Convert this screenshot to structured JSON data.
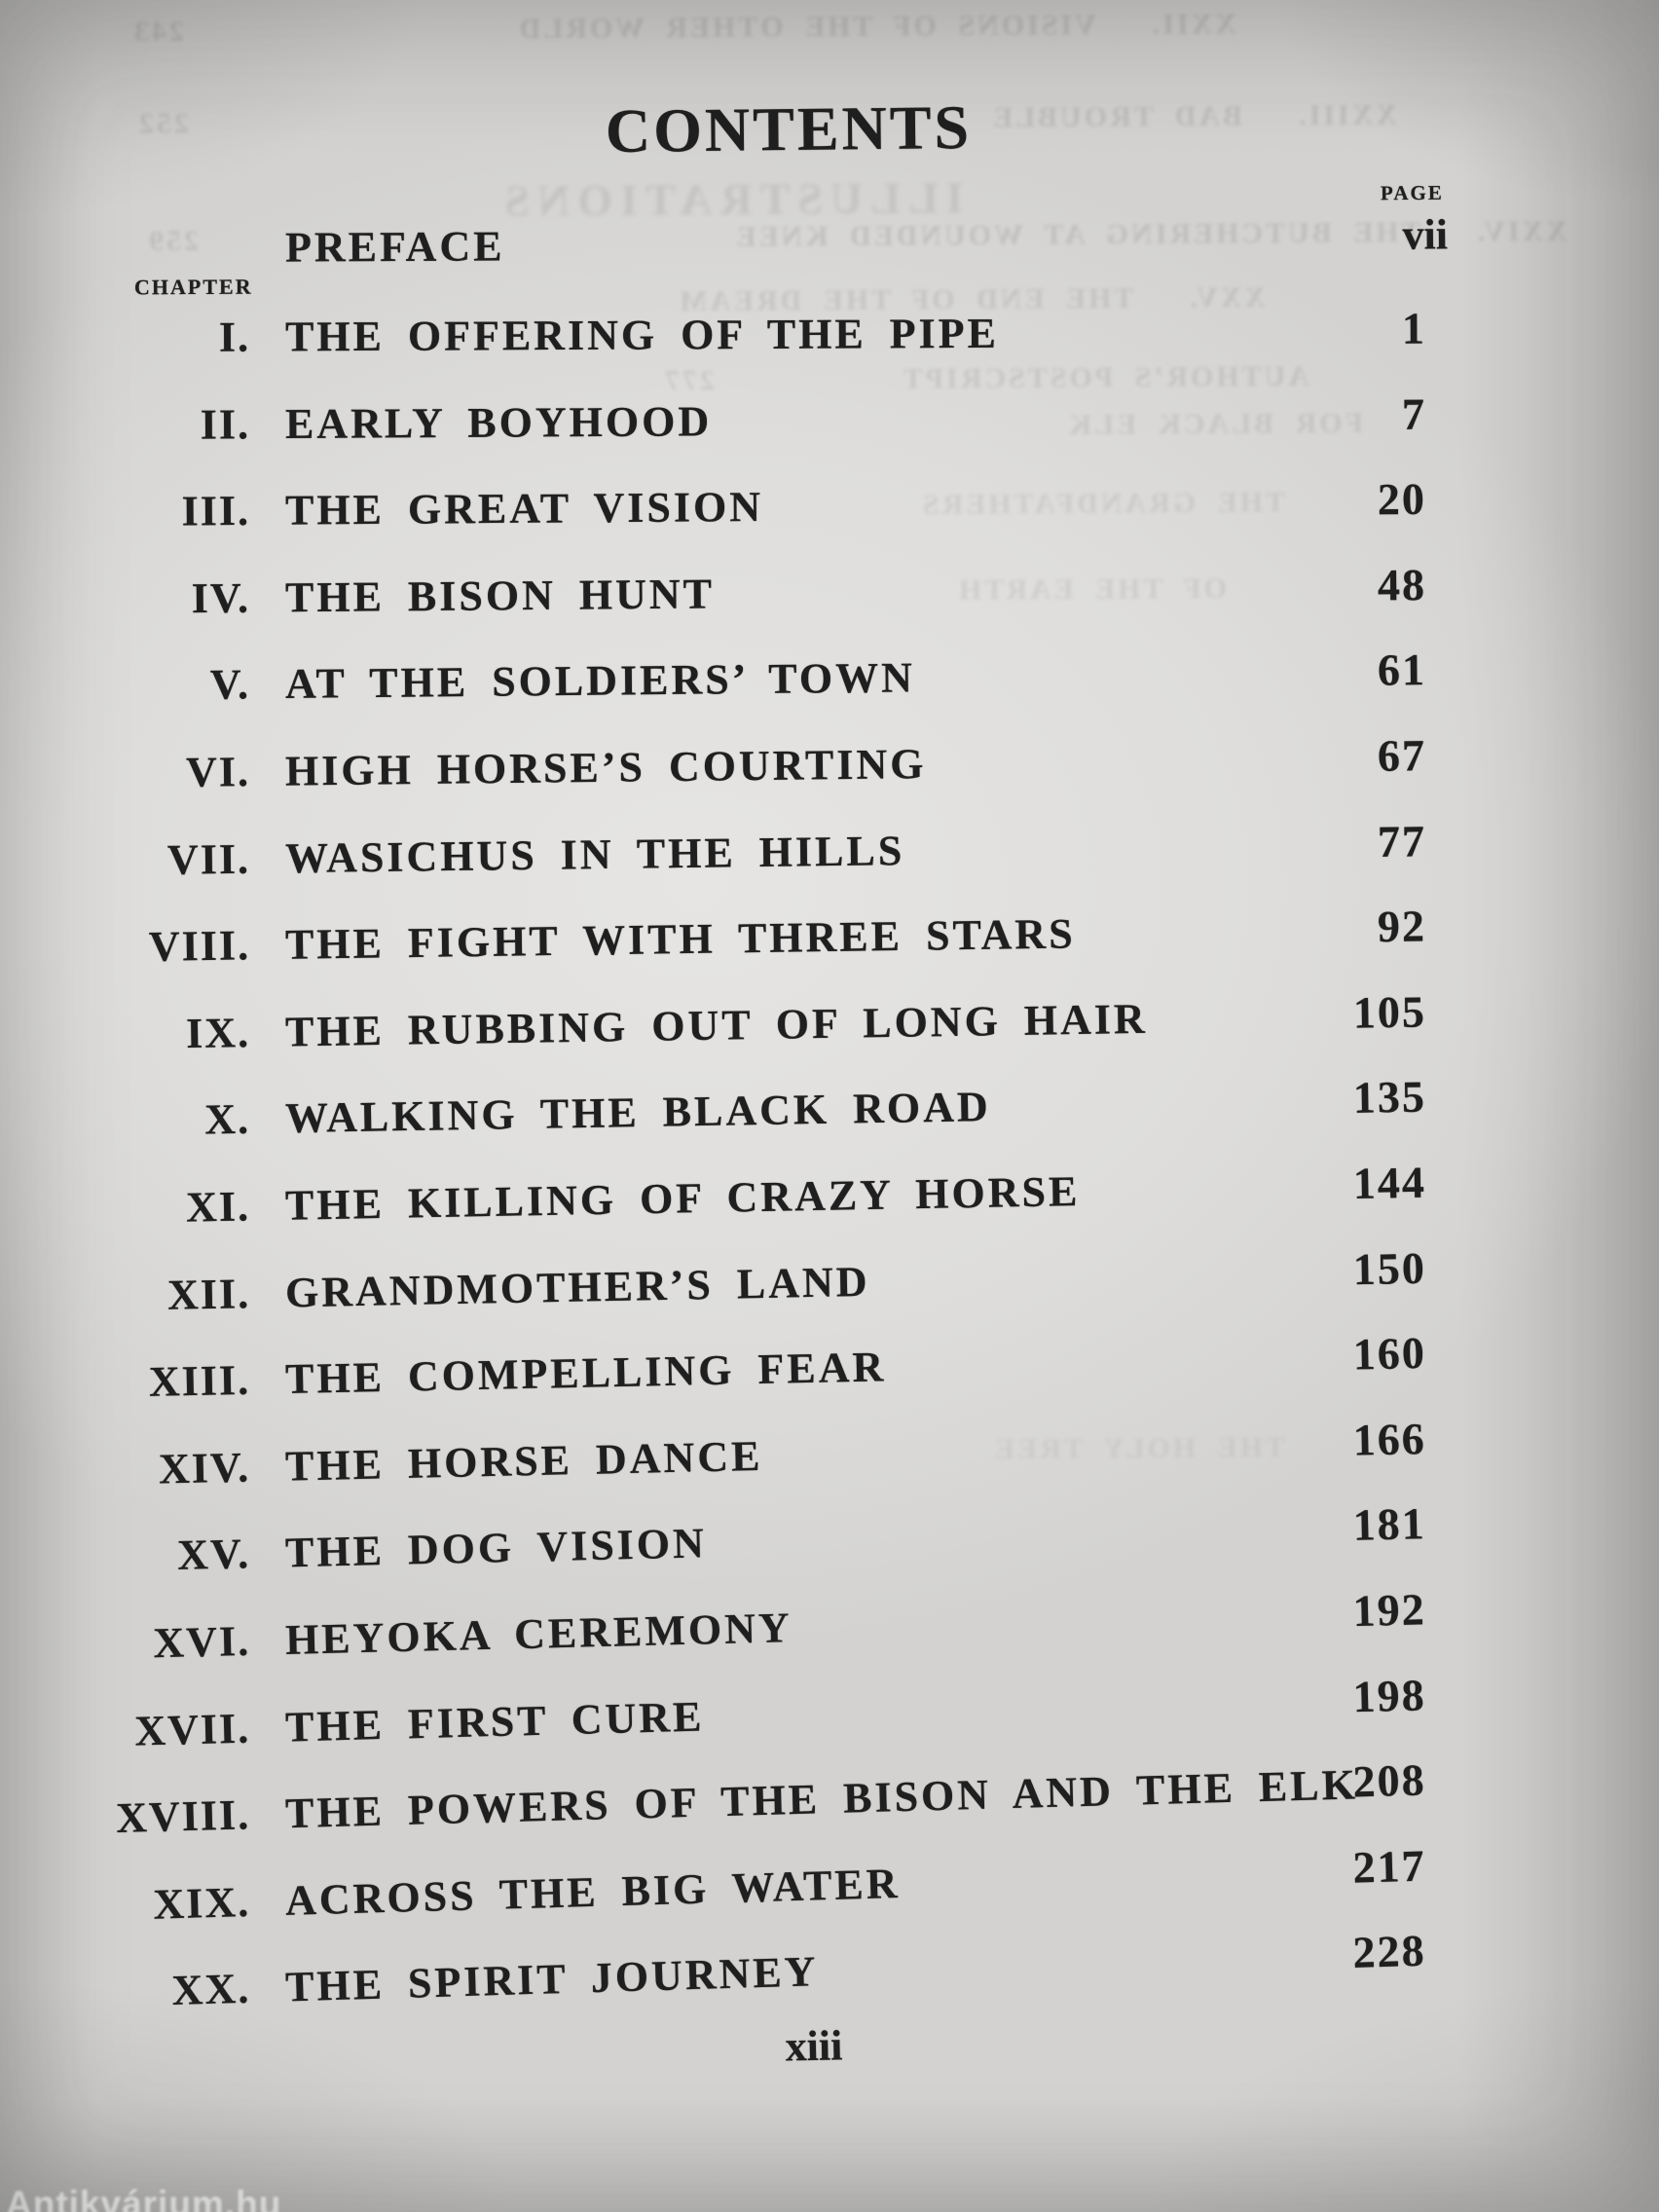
{
  "page": {
    "title": "CONTENTS",
    "column_headers": {
      "chapter_label": "CHAPTER",
      "page_label": "PAGE"
    },
    "preface": {
      "label": "PREFACE",
      "page": "vii"
    },
    "chapters": [
      {
        "numeral": "I.",
        "title": "THE OFFERING OF THE PIPE",
        "page": "1"
      },
      {
        "numeral": "II.",
        "title": "EARLY BOYHOOD",
        "page": "7"
      },
      {
        "numeral": "III.",
        "title": "THE GREAT VISION",
        "page": "20"
      },
      {
        "numeral": "IV.",
        "title": "THE BISON HUNT",
        "page": "48"
      },
      {
        "numeral": "V.",
        "title": "AT THE SOLDIERS’ TOWN",
        "page": "61"
      },
      {
        "numeral": "VI.",
        "title": "HIGH HORSE’S COURTING",
        "page": "67"
      },
      {
        "numeral": "VII.",
        "title": "WASICHUS IN THE HILLS",
        "page": "77"
      },
      {
        "numeral": "VIII.",
        "title": "THE FIGHT WITH THREE STARS",
        "page": "92"
      },
      {
        "numeral": "IX.",
        "title": "THE RUBBING OUT OF LONG HAIR",
        "page": "105"
      },
      {
        "numeral": "X.",
        "title": "WALKING THE BLACK ROAD",
        "page": "135"
      },
      {
        "numeral": "XI.",
        "title": "THE KILLING OF CRAZY HORSE",
        "page": "144"
      },
      {
        "numeral": "XII.",
        "title": "GRANDMOTHER’S LAND",
        "page": "150"
      },
      {
        "numeral": "XIII.",
        "title": "THE COMPELLING FEAR",
        "page": "160"
      },
      {
        "numeral": "XIV.",
        "title": "THE HORSE DANCE",
        "page": "166"
      },
      {
        "numeral": "XV.",
        "title": "THE DOG VISION",
        "page": "181"
      },
      {
        "numeral": "XVI.",
        "title": "HEYOKA CEREMONY",
        "page": "192"
      },
      {
        "numeral": "XVII.",
        "title": "THE FIRST CURE",
        "page": "198"
      },
      {
        "numeral": "XVIII.",
        "title": "THE POWERS OF THE BISON AND THE ELK",
        "page": "208"
      },
      {
        "numeral": "XIX.",
        "title": "ACROSS THE BIG WATER",
        "page": "217"
      },
      {
        "numeral": "XX.",
        "title": "THE SPIRIT JOURNEY",
        "page": "228"
      }
    ],
    "folio": "xiii"
  },
  "ghost": {
    "heading": "ILLUSTRATIONS",
    "lines": [
      {
        "numeral": "XXII.",
        "title": "VISIONS OF THE OTHER WORLD",
        "page": "243"
      },
      {
        "numeral": "XXIII.",
        "title": "BAD TROUBLE",
        "page": "252"
      },
      {
        "numeral": "XXIV.",
        "title": "THE BUTCHERING AT WOUNDED KNEE",
        "page": "259"
      },
      {
        "numeral": "XXV.",
        "title": "THE END OF THE DREAM",
        "page": ""
      },
      {
        "numeral": "",
        "title": "AUTHOR’S POSTSCRIPT",
        "page": "277"
      }
    ],
    "fragments": [
      {
        "text": "FOR BLACK ELK"
      },
      {
        "text": "THE GRANDFATHERS"
      },
      {
        "text": "OF THE EARTH"
      },
      {
        "text": "THE HOLY TREE"
      }
    ]
  },
  "watermark": {
    "text": "Antikvárium.hu"
  }
}
